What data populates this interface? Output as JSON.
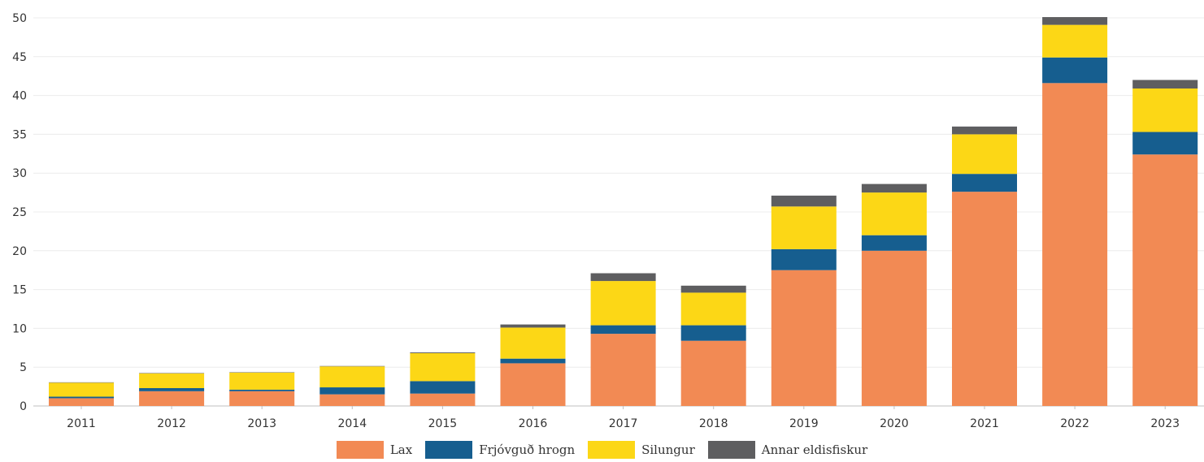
{
  "chart_data": {
    "type": "bar",
    "stacked": true,
    "categories": [
      "2011",
      "2012",
      "2013",
      "2014",
      "2015",
      "2016",
      "2017",
      "2018",
      "2019",
      "2020",
      "2021",
      "2022",
      "2023"
    ],
    "series": [
      {
        "name": "Lax",
        "color": "#f28a54",
        "values": [
          1.0,
          1.9,
          1.9,
          1.5,
          1.6,
          5.5,
          9.3,
          8.4,
          17.5,
          20.0,
          27.6,
          41.6,
          32.4
        ]
      },
      {
        "name": "Frjóvguð hrogn",
        "color": "#165e8f",
        "values": [
          0.2,
          0.4,
          0.2,
          0.9,
          1.6,
          0.6,
          1.1,
          2.0,
          2.7,
          2.0,
          2.3,
          3.3,
          2.9
        ]
      },
      {
        "name": "Silungur",
        "color": "#fcd716",
        "values": [
          1.8,
          1.9,
          2.2,
          2.7,
          3.6,
          4.0,
          5.7,
          4.2,
          5.5,
          5.5,
          5.1,
          4.2,
          5.6
        ]
      },
      {
        "name": "Annar eldisfiskur",
        "color": "#5e5e60",
        "values": [
          0.05,
          0.05,
          0.05,
          0.05,
          0.1,
          0.4,
          1.0,
          0.9,
          1.4,
          1.1,
          1.0,
          1.0,
          1.1
        ]
      }
    ],
    "ylim": [
      0,
      50
    ],
    "yticks": [
      0,
      5,
      10,
      15,
      20,
      25,
      30,
      35,
      40,
      45,
      50
    ],
    "grid": true,
    "legend_position": "bottom-center"
  }
}
